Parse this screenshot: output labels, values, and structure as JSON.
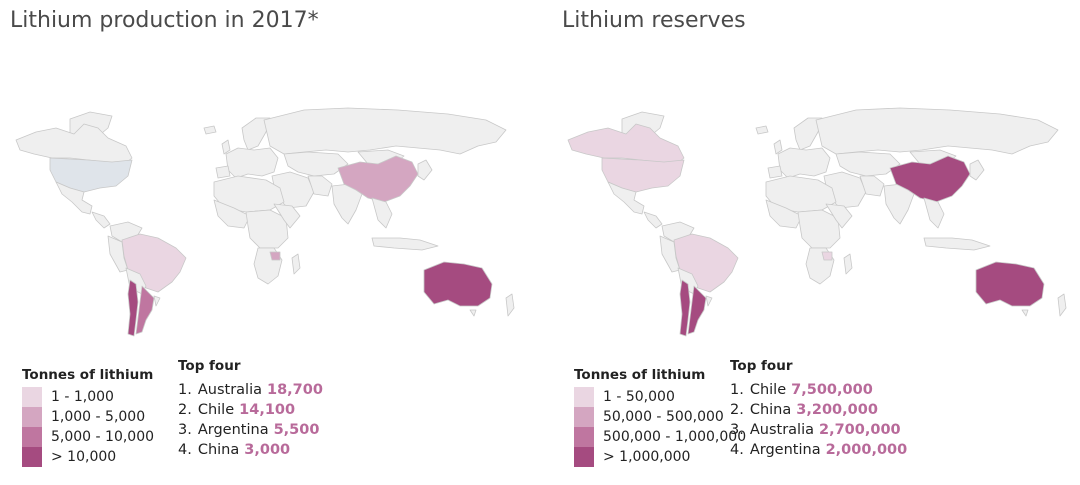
{
  "colors": {
    "land_default": "#efefef",
    "borders": "#c8c8c8",
    "no_data_highlight": "#dfe4ea",
    "scale": [
      "#ead6e2",
      "#d4a6c1",
      "#bf76a0",
      "#a54b80"
    ],
    "value_text": "#b86a9a"
  },
  "panels": [
    {
      "title": "Lithium production in 2017*",
      "legend": {
        "title": "Tonnes of lithium",
        "items": [
          {
            "label": "1 - 1,000"
          },
          {
            "label": "1,000 - 5,000"
          },
          {
            "label": "5,000 - 10,000"
          },
          {
            "label": "> 10,000"
          }
        ]
      },
      "top": {
        "title": "Top four",
        "items": [
          {
            "rank": "1.",
            "country": "Australia",
            "value": "18,700"
          },
          {
            "rank": "2.",
            "country": "Chile",
            "value": "14,100"
          },
          {
            "rank": "3.",
            "country": "Argentina",
            "value": "5,500"
          },
          {
            "rank": "4.",
            "country": "China",
            "value": "3,000"
          }
        ]
      },
      "map_classes": {
        "canada": "default",
        "usa": "nodata",
        "brazil": "1",
        "argentina": "3",
        "chile": "4",
        "china": "2",
        "australia": "4",
        "zimbabwe": "2"
      }
    },
    {
      "title": "Lithium reserves",
      "legend": {
        "title": "Tonnes of lithium",
        "items": [
          {
            "label": "1 - 50,000"
          },
          {
            "label": "50,000 - 500,000"
          },
          {
            "label": "500,000 - 1,000,000"
          },
          {
            "label": "> 1,000,000"
          }
        ]
      },
      "top": {
        "title": "Top four",
        "items": [
          {
            "rank": "1.",
            "country": "Chile",
            "value": "7,500,000"
          },
          {
            "rank": "2.",
            "country": "China",
            "value": "3,200,000"
          },
          {
            "rank": "3.",
            "country": "Australia",
            "value": "2,700,000"
          },
          {
            "rank": "4.",
            "country": "Argentina",
            "value": "2,000,000"
          }
        ]
      },
      "map_classes": {
        "canada": "1",
        "usa": "1",
        "brazil": "1",
        "argentina": "4",
        "chile": "4",
        "china": "4",
        "australia": "4",
        "zimbabwe": "1"
      }
    }
  ]
}
